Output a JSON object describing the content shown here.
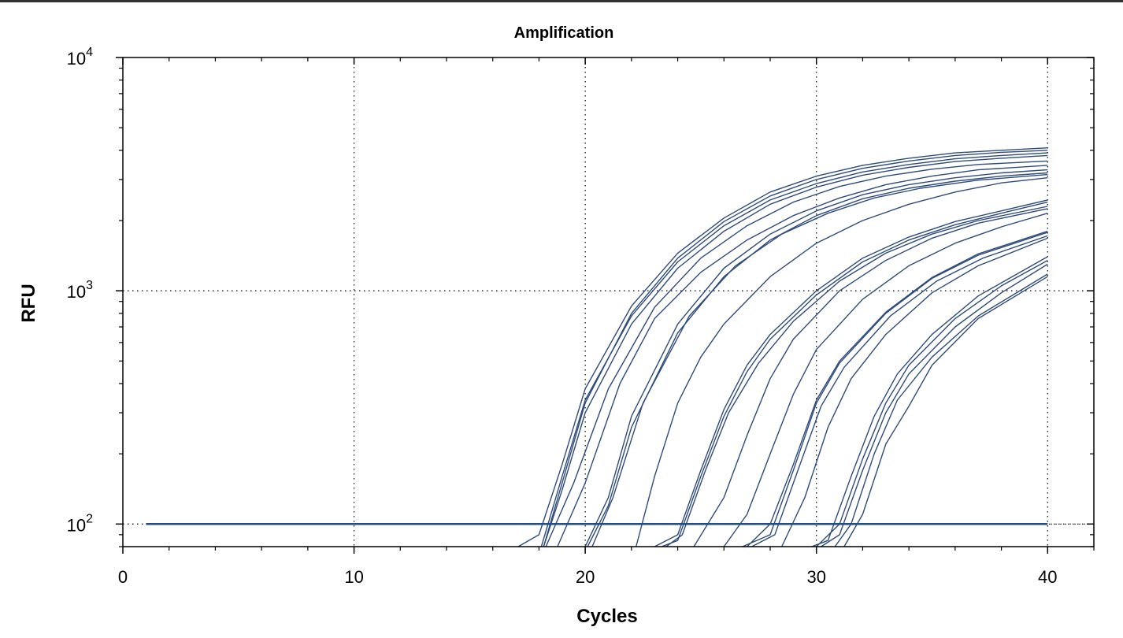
{
  "chart_data": {
    "type": "line",
    "title": "Amplification",
    "xlabel": "Cycles",
    "ylabel": "RFU",
    "xlim": [
      0,
      42
    ],
    "ylim": [
      80,
      10000
    ],
    "yscale": "log",
    "grid": true,
    "x_ticks": [
      "0",
      "10",
      "20",
      "30",
      "40"
    ],
    "y_ticks": [
      {
        "base": "10",
        "exp": "2"
      },
      {
        "base": "10",
        "exp": "3"
      },
      {
        "base": "10",
        "exp": "4"
      }
    ],
    "threshold": {
      "x": [
        1,
        40
      ],
      "y": 100
    },
    "line_color": "#2f4b7c",
    "threshold_color": "#1f4e86",
    "series": [
      {
        "values": [
          [
            17.1,
            80
          ],
          [
            18,
            90
          ],
          [
            19,
            180
          ],
          [
            20,
            380
          ],
          [
            22,
            860
          ],
          [
            24,
            1450
          ],
          [
            26,
            2050
          ],
          [
            28,
            2650
          ],
          [
            30,
            3100
          ],
          [
            32,
            3450
          ],
          [
            34,
            3700
          ],
          [
            36,
            3900
          ],
          [
            38,
            4000
          ],
          [
            40,
            4100
          ]
        ]
      },
      {
        "values": [
          [
            18.2,
            80
          ],
          [
            19,
            150
          ],
          [
            20,
            330
          ],
          [
            22,
            800
          ],
          [
            24,
            1380
          ],
          [
            26,
            1980
          ],
          [
            28,
            2550
          ],
          [
            30,
            3000
          ],
          [
            32,
            3350
          ],
          [
            34,
            3600
          ],
          [
            36,
            3800
          ],
          [
            38,
            3920
          ],
          [
            40,
            4000
          ]
        ]
      },
      {
        "values": [
          [
            18.1,
            80
          ],
          [
            19,
            160
          ],
          [
            20,
            340
          ],
          [
            22,
            780
          ],
          [
            24,
            1330
          ],
          [
            26,
            1900
          ],
          [
            28,
            2450
          ],
          [
            30,
            2880
          ],
          [
            32,
            3230
          ],
          [
            34,
            3480
          ],
          [
            36,
            3680
          ],
          [
            38,
            3800
          ],
          [
            40,
            3900
          ]
        ]
      },
      {
        "values": [
          [
            18.2,
            80
          ],
          [
            19,
            140
          ],
          [
            20,
            300
          ],
          [
            22,
            720
          ],
          [
            24,
            1250
          ],
          [
            26,
            1800
          ],
          [
            28,
            2350
          ],
          [
            30,
            2780
          ],
          [
            32,
            3130
          ],
          [
            34,
            3380
          ],
          [
            36,
            3580
          ],
          [
            38,
            3700
          ],
          [
            40,
            3800
          ]
        ]
      },
      {
        "values": [
          [
            18.3,
            80
          ],
          [
            19.5,
            150
          ],
          [
            21,
            380
          ],
          [
            23,
            850
          ],
          [
            25,
            1380
          ],
          [
            27,
            1900
          ],
          [
            29,
            2400
          ],
          [
            31,
            2800
          ],
          [
            33,
            3100
          ],
          [
            35,
            3320
          ],
          [
            37,
            3480
          ],
          [
            40,
            3600
          ]
        ]
      },
      {
        "values": [
          [
            18.8,
            80
          ],
          [
            20,
            150
          ],
          [
            21.5,
            400
          ],
          [
            23,
            760
          ],
          [
            25,
            1200
          ],
          [
            27,
            1650
          ],
          [
            29,
            2100
          ],
          [
            31,
            2500
          ],
          [
            33,
            2850
          ],
          [
            35,
            3100
          ],
          [
            37,
            3300
          ],
          [
            40,
            3450
          ]
        ]
      },
      {
        "values": [
          [
            20.0,
            80
          ],
          [
            21,
            130
          ],
          [
            22,
            290
          ],
          [
            24,
            720
          ],
          [
            26,
            1250
          ],
          [
            28,
            1750
          ],
          [
            30,
            2200
          ],
          [
            32,
            2580
          ],
          [
            34,
            2850
          ],
          [
            36,
            3050
          ],
          [
            38,
            3200
          ],
          [
            40,
            3300
          ]
        ]
      },
      {
        "values": [
          [
            20.1,
            80
          ],
          [
            21,
            120
          ],
          [
            22,
            260
          ],
          [
            24,
            660
          ],
          [
            26,
            1150
          ],
          [
            28,
            1650
          ],
          [
            30,
            2100
          ],
          [
            32,
            2480
          ],
          [
            34,
            2750
          ],
          [
            36,
            2950
          ],
          [
            38,
            3100
          ],
          [
            40,
            3200
          ]
        ]
      },
      {
        "values": [
          [
            20.3,
            80
          ],
          [
            21.2,
            130
          ],
          [
            22.5,
            330
          ],
          [
            24.5,
            780
          ],
          [
            26.5,
            1280
          ],
          [
            28.5,
            1750
          ],
          [
            30.5,
            2150
          ],
          [
            32.5,
            2500
          ],
          [
            34.5,
            2750
          ],
          [
            37,
            2980
          ],
          [
            40,
            3150
          ]
        ]
      },
      {
        "values": [
          [
            22.2,
            80
          ],
          [
            23,
            160
          ],
          [
            24,
            330
          ],
          [
            25,
            520
          ],
          [
            26,
            720
          ],
          [
            28,
            1150
          ],
          [
            30,
            1600
          ],
          [
            32,
            2000
          ],
          [
            34,
            2350
          ],
          [
            36,
            2650
          ],
          [
            38,
            2900
          ],
          [
            40,
            3050
          ]
        ]
      },
      {
        "values": [
          [
            23.0,
            80
          ],
          [
            24,
            90
          ],
          [
            25,
            170
          ],
          [
            26,
            310
          ],
          [
            27,
            480
          ],
          [
            28,
            650
          ],
          [
            30,
            1000
          ],
          [
            32,
            1380
          ],
          [
            34,
            1700
          ],
          [
            36,
            1980
          ],
          [
            38,
            2200
          ],
          [
            40,
            2450
          ]
        ]
      },
      {
        "values": [
          [
            23.3,
            80
          ],
          [
            24,
            85
          ],
          [
            25,
            160
          ],
          [
            26,
            290
          ],
          [
            27,
            450
          ],
          [
            28,
            620
          ],
          [
            30,
            960
          ],
          [
            32,
            1330
          ],
          [
            34,
            1650
          ],
          [
            36,
            1920
          ],
          [
            38,
            2150
          ],
          [
            40,
            2400
          ]
        ]
      },
      {
        "values": [
          [
            23.5,
            80
          ],
          [
            24.2,
            90
          ],
          [
            25.2,
            170
          ],
          [
            26.2,
            300
          ],
          [
            27.5,
            490
          ],
          [
            29,
            740
          ],
          [
            31,
            1100
          ],
          [
            33,
            1450
          ],
          [
            35,
            1750
          ],
          [
            37,
            2000
          ],
          [
            40,
            2300
          ]
        ]
      },
      {
        "values": [
          [
            24.7,
            80
          ],
          [
            26,
            130
          ],
          [
            27,
            240
          ],
          [
            28,
            420
          ],
          [
            29,
            620
          ],
          [
            31,
            1000
          ],
          [
            33,
            1350
          ],
          [
            35,
            1680
          ],
          [
            37,
            1950
          ],
          [
            40,
            2250
          ]
        ]
      },
      {
        "values": [
          [
            26.0,
            80
          ],
          [
            27,
            110
          ],
          [
            28,
            200
          ],
          [
            29,
            360
          ],
          [
            30,
            560
          ],
          [
            32,
            920
          ],
          [
            34,
            1280
          ],
          [
            36,
            1600
          ],
          [
            38,
            1880
          ],
          [
            40,
            2150
          ]
        ]
      },
      {
        "values": [
          [
            26.8,
            80
          ],
          [
            28,
            90
          ],
          [
            29,
            170
          ],
          [
            30,
            330
          ],
          [
            31,
            490
          ],
          [
            33,
            800
          ],
          [
            35,
            1130
          ],
          [
            37,
            1420
          ],
          [
            40,
            1780
          ]
        ]
      },
      {
        "values": [
          [
            27.0,
            80
          ],
          [
            28,
            100
          ],
          [
            29,
            180
          ],
          [
            30,
            340
          ],
          [
            31,
            500
          ],
          [
            33,
            810
          ],
          [
            35,
            1140
          ],
          [
            37,
            1440
          ],
          [
            40,
            1800
          ]
        ]
      },
      {
        "values": [
          [
            27.2,
            80
          ],
          [
            28.2,
            90
          ],
          [
            29.2,
            170
          ],
          [
            30.2,
            320
          ],
          [
            31.2,
            470
          ],
          [
            33.2,
            780
          ],
          [
            35.2,
            1100
          ],
          [
            37.2,
            1380
          ],
          [
            40,
            1720
          ]
        ]
      },
      {
        "values": [
          [
            28.5,
            80
          ],
          [
            29.5,
            130
          ],
          [
            30.5,
            260
          ],
          [
            31.5,
            420
          ],
          [
            33,
            650
          ],
          [
            35,
            980
          ],
          [
            37,
            1280
          ],
          [
            40,
            1680
          ]
        ]
      },
      {
        "values": [
          [
            29.8,
            80
          ],
          [
            30.5,
            85
          ],
          [
            31.5,
            160
          ],
          [
            32.5,
            290
          ],
          [
            33.5,
            440
          ],
          [
            35,
            650
          ],
          [
            37,
            950
          ],
          [
            40,
            1400
          ]
        ]
      },
      {
        "values": [
          [
            30.0,
            80
          ],
          [
            31,
            100
          ],
          [
            32,
            190
          ],
          [
            33,
            330
          ],
          [
            34,
            480
          ],
          [
            36,
            760
          ],
          [
            38,
            1050
          ],
          [
            40,
            1350
          ]
        ]
      },
      {
        "values": [
          [
            30.2,
            80
          ],
          [
            31,
            90
          ],
          [
            32,
            170
          ],
          [
            33,
            300
          ],
          [
            34,
            440
          ],
          [
            36,
            700
          ],
          [
            38,
            980
          ],
          [
            40,
            1300
          ]
        ]
      },
      {
        "values": [
          [
            30.8,
            80
          ],
          [
            31.5,
            100
          ],
          [
            32.5,
            200
          ],
          [
            33.5,
            340
          ],
          [
            35,
            520
          ],
          [
            37,
            780
          ],
          [
            40,
            1180
          ]
        ]
      },
      {
        "values": [
          [
            31.2,
            80
          ],
          [
            32,
            110
          ],
          [
            33,
            220
          ],
          [
            34,
            320
          ],
          [
            35,
            480
          ],
          [
            37,
            760
          ],
          [
            40,
            1150
          ]
        ]
      }
    ]
  }
}
